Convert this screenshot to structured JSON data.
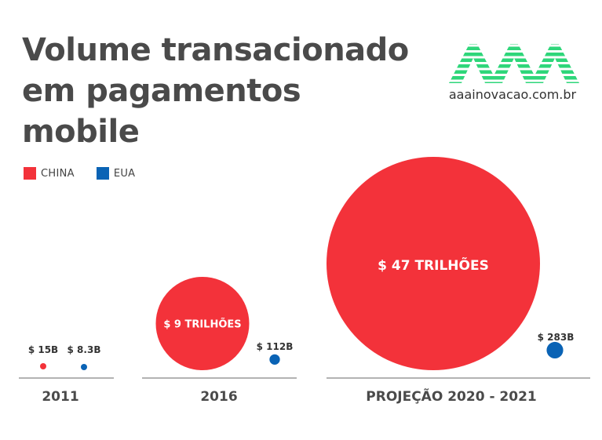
{
  "header": {
    "title_lines": [
      "Volume transacionado",
      "em pagamentos",
      "mobile"
    ]
  },
  "logo": {
    "text": "aaainovacao.com.br",
    "icon": "aaa-logo-icon",
    "color": "#2ed67a"
  },
  "legend": [
    {
      "label": "CHINA",
      "color": "#f3323a"
    },
    {
      "label": "EUA",
      "color": "#0a63b5"
    }
  ],
  "chart_data": {
    "type": "bubble",
    "categories": [
      "2011",
      "2016",
      "PROJEÇÃO 2020 - 2021"
    ],
    "series": [
      {
        "name": "CHINA",
        "color": "#f3323a",
        "values_usd_billions": [
          15,
          9000,
          47000
        ],
        "labels": [
          "$ 15B",
          "$ 9 TRILHÕES",
          "$ 47 TRILHÕES"
        ]
      },
      {
        "name": "EUA",
        "color": "#0a63b5",
        "values_usd_billions": [
          8.3,
          112,
          283
        ],
        "labels": [
          "$ 8.3B",
          "$ 112B",
          "$ 283B"
        ]
      }
    ]
  }
}
